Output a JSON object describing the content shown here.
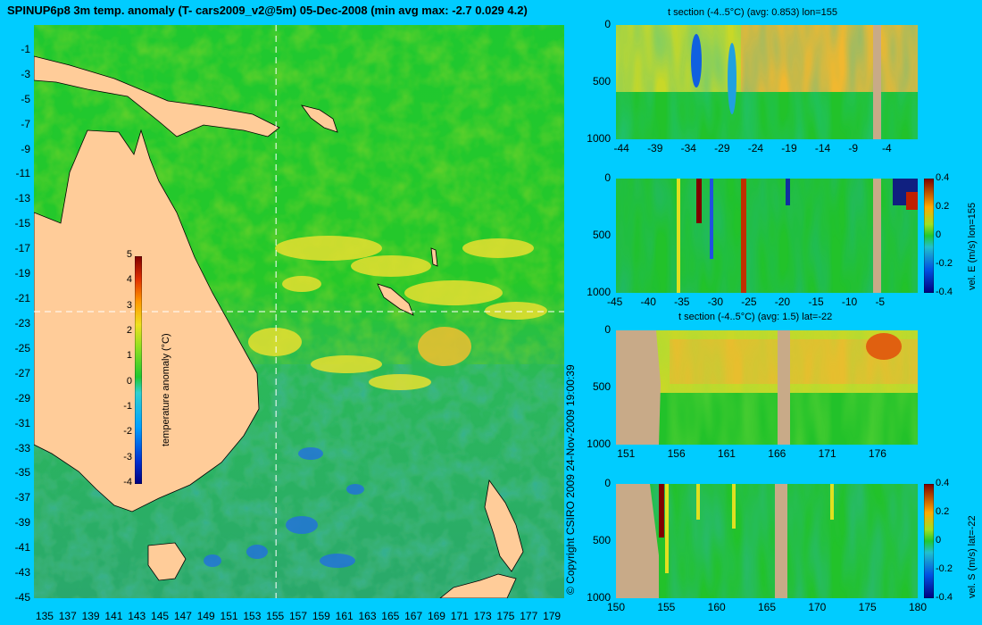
{
  "main_title": "SPINUP6p8 3m temp. anomaly (T- cars2009_v2@5m) 05-Dec-2008 (min avg max: -2.7 0.029 4.2)",
  "side_text": "© Copyright CSIRO 2009   24-Nov-2009 19:00:39",
  "colors": {
    "background": "#00ccff",
    "land": "#ffcc99",
    "section_land": "#c8aa88",
    "ocean_base": "#22c22a"
  },
  "chart_data": [
    {
      "id": "map",
      "type": "heatmap",
      "title": "SPINUP6p8 3m temp. anomaly (T- cars2009_v2@5m) 05-Dec-2008 (min avg max: -2.7 0.029 4.2)",
      "x_ticks": [
        "135",
        "137",
        "139",
        "141",
        "143",
        "145",
        "147",
        "149",
        "151",
        "153",
        "155",
        "157",
        "159",
        "161",
        "163",
        "165",
        "167",
        "169",
        "171",
        "173",
        "175",
        "177",
        "179"
      ],
      "y_ticks": [
        "-1",
        "-3",
        "-5",
        "-7",
        "-9",
        "-11",
        "-13",
        "-15",
        "-17",
        "-19",
        "-21",
        "-23",
        "-25",
        "-27",
        "-29",
        "-31",
        "-33",
        "-35",
        "-37",
        "-39",
        "-41",
        "-43",
        "-45"
      ],
      "xlim": [
        134,
        180
      ],
      "ylim": [
        -45,
        1
      ],
      "section_lon": 155,
      "section_lat": -22,
      "colorbar": {
        "label": "temperature anomaly (°C)",
        "ticks": [
          "5",
          "4",
          "3",
          "2",
          "1",
          "0",
          "-1",
          "-2",
          "-3",
          "-4"
        ],
        "range": [
          -4,
          5
        ]
      }
    },
    {
      "id": "tsec-lon",
      "type": "heatmap",
      "title": "t section (-4..5°C) (avg: 0.853) lon=155",
      "x_ticks": [
        "-44",
        "-39",
        "-34",
        "-29",
        "-24",
        "-19",
        "-14",
        "-9",
        "-4"
      ],
      "y_ticks": [
        "0",
        "500",
        "1000"
      ],
      "xlim": [
        -45,
        0
      ],
      "ylim": [
        1000,
        0
      ]
    },
    {
      "id": "vel-e",
      "type": "heatmap",
      "title": "",
      "x_ticks": [
        "-45",
        "-40",
        "-35",
        "-30",
        "-25",
        "-20",
        "-15",
        "-10",
        "-5"
      ],
      "y_ticks": [
        "0",
        "500",
        "1000"
      ],
      "xlim": [
        -45,
        0
      ],
      "ylim": [
        1000,
        0
      ],
      "colorbar": {
        "label": "vel. E (m/s) lon=155",
        "ticks": [
          "0.4",
          "0.2",
          "0",
          "-0.2",
          "-0.4"
        ],
        "range": [
          -0.4,
          0.4
        ]
      }
    },
    {
      "id": "tsec-lat",
      "type": "heatmap",
      "title": "t section (-4..5°C) (avg: 1.5) lat=-22",
      "x_ticks": [
        "151",
        "156",
        "161",
        "166",
        "171",
        "176"
      ],
      "y_ticks": [
        "0",
        "500",
        "1000"
      ],
      "xlim": [
        150,
        180
      ],
      "ylim": [
        1000,
        0
      ]
    },
    {
      "id": "vel-s",
      "type": "heatmap",
      "title": "",
      "x_ticks": [
        "150",
        "155",
        "160",
        "165",
        "170",
        "175",
        "180"
      ],
      "y_ticks": [
        "0",
        "500",
        "1000"
      ],
      "xlim": [
        150,
        180
      ],
      "ylim": [
        1000,
        0
      ],
      "colorbar": {
        "label": "vel. S (m/s) lat=-22",
        "ticks": [
          "0.4",
          "0.2",
          "0",
          "-0.2",
          "-0.4"
        ],
        "range": [
          -0.4,
          0.4
        ]
      }
    }
  ]
}
